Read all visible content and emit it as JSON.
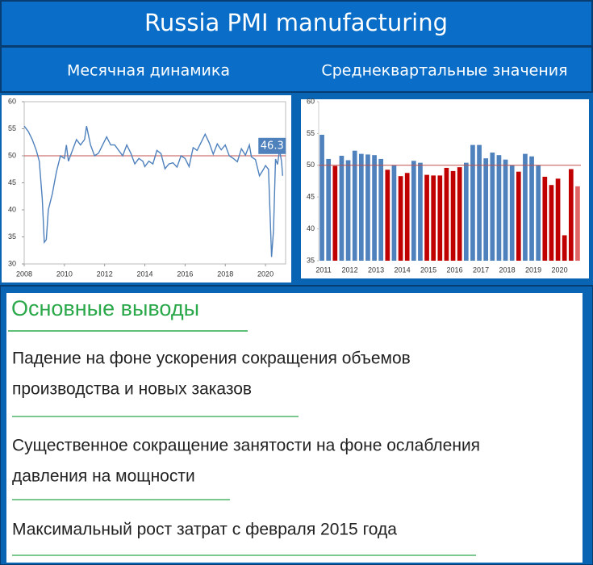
{
  "title": "Russia PMI manufacturing",
  "chart_data": [
    {
      "type": "line",
      "title": "Месячная динамика",
      "color": "#4f81bd",
      "x": [
        2008.0,
        2008.2,
        2008.4,
        2008.6,
        2008.75,
        2008.9,
        2009.0,
        2009.1,
        2009.2,
        2009.4,
        2009.6,
        2009.8,
        2010.0,
        2010.1,
        2010.2,
        2010.4,
        2010.6,
        2010.8,
        2011.0,
        2011.1,
        2011.3,
        2011.5,
        2011.7,
        2011.9,
        2012.1,
        2012.3,
        2012.5,
        2012.7,
        2012.9,
        2013.1,
        2013.3,
        2013.5,
        2013.7,
        2013.9,
        2014.0,
        2014.2,
        2014.4,
        2014.6,
        2014.8,
        2015.0,
        2015.2,
        2015.4,
        2015.6,
        2015.8,
        2016.0,
        2016.2,
        2016.4,
        2016.6,
        2016.8,
        2017.0,
        2017.2,
        2017.4,
        2017.6,
        2017.8,
        2018.0,
        2018.2,
        2018.4,
        2018.6,
        2018.8,
        2019.0,
        2019.2,
        2019.3,
        2019.5,
        2019.7,
        2019.9,
        2020.0,
        2020.15,
        2020.3,
        2020.4,
        2020.5,
        2020.6,
        2020.7,
        2020.8,
        2020.85
      ],
      "values": [
        55.5,
        54.5,
        53,
        51,
        49,
        42,
        34,
        34.5,
        40,
        43,
        47,
        50,
        49.5,
        52,
        49,
        51,
        53,
        52,
        53,
        55.5,
        52,
        50,
        50.5,
        52,
        53.5,
        52,
        52,
        51,
        50,
        52,
        50.5,
        48.5,
        49.5,
        49,
        48,
        49,
        48.5,
        51,
        50.4,
        47.6,
        48.5,
        48.7,
        47.9,
        50,
        49.5,
        48,
        51.5,
        51,
        52.5,
        54,
        52.4,
        50.3,
        52.2,
        51.1,
        52,
        50,
        49.5,
        48.9,
        51.3,
        50.1,
        52,
        49.8,
        49.3,
        46.3,
        47.5,
        48.2,
        47.5,
        31.3,
        36.2,
        49.4,
        48.4,
        51.1,
        48.9,
        46.3
      ],
      "xlim": [
        2008,
        2021
      ],
      "xticks": [
        2008,
        2010,
        2012,
        2014,
        2016,
        2018,
        2020
      ],
      "ylim": [
        30,
        60
      ],
      "yticks": [
        30,
        35,
        40,
        45,
        50,
        55,
        60
      ],
      "reference_line": 50,
      "reference_color": "#c0504d",
      "label_last": true,
      "label_color": "#4f81bd",
      "grid": false
    },
    {
      "type": "bar",
      "title": "Среднеквартальные значения",
      "categories": [
        "2011",
        null,
        null,
        null,
        "2012",
        null,
        null,
        null,
        "2013",
        null,
        null,
        null,
        "2014",
        null,
        null,
        null,
        "2015",
        null,
        null,
        null,
        "2016",
        null,
        null,
        null,
        "2017",
        null,
        null,
        null,
        "2018",
        null,
        null,
        null,
        "2019",
        null,
        null,
        null,
        "2020",
        null,
        null,
        null
      ],
      "values": [
        54.8,
        51,
        49.9,
        51.5,
        50.8,
        52.3,
        51.8,
        51.7,
        51.6,
        51,
        49.3,
        50,
        48.3,
        48.8,
        50.7,
        50.4,
        48.5,
        48.4,
        48.4,
        49.6,
        49.1,
        49.7,
        50.4,
        53.2,
        53.2,
        51.1,
        52,
        51.6,
        50.9,
        50,
        49,
        51.8,
        51.4,
        50,
        48.2,
        46.9,
        47.9,
        39,
        49.4,
        46.7
      ],
      "colors": [
        "#4f81bd",
        "#4f81bd",
        "#c00000",
        "#4f81bd",
        "#4f81bd",
        "#4f81bd",
        "#4f81bd",
        "#4f81bd",
        "#4f81bd",
        "#4f81bd",
        "#c00000",
        "#4f81bd",
        "#c00000",
        "#c00000",
        "#4f81bd",
        "#4f81bd",
        "#c00000",
        "#c00000",
        "#c00000",
        "#c00000",
        "#c00000",
        "#c00000",
        "#4f81bd",
        "#4f81bd",
        "#4f81bd",
        "#4f81bd",
        "#4f81bd",
        "#4f81bd",
        "#4f81bd",
        "#4f81bd",
        "#c00000",
        "#4f81bd",
        "#4f81bd",
        "#4f81bd",
        "#c00000",
        "#c00000",
        "#c00000",
        "#c00000",
        "#c00000",
        "#e06666"
      ],
      "ylim": [
        35,
        60
      ],
      "yticks": [
        35,
        40,
        45,
        50,
        55,
        60
      ],
      "reference_line": 50,
      "reference_color": "#c0504d",
      "grid": false
    }
  ],
  "conclusions": {
    "title": "Основные выводы",
    "items": [
      [
        "Падение на фоне ускорения сокращения объемов",
        "производства и новых заказов"
      ],
      [
        "Существенное сокращение занятости на фоне ослабления",
        "давления на мощности"
      ],
      [
        "Максимальный рост затрат с февраля 2015 года"
      ]
    ]
  }
}
